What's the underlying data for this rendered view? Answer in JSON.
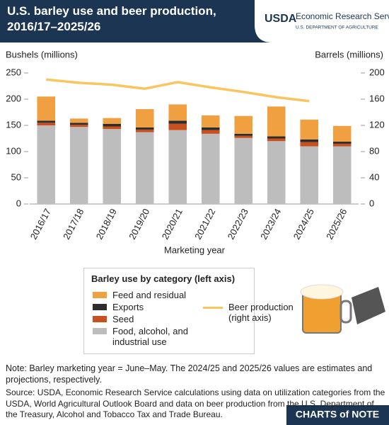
{
  "chart_data": {
    "type": "bar",
    "title": "U.S. barley use and beer production, 2016/17–2025/26",
    "logo": "USDA",
    "agency": "Economic Research Service",
    "department": "U.S. DEPARTMENT OF AGRICULTURE",
    "y_label": "Bushels (millions)",
    "y2_label": "Barrels (millions)",
    "x_label": "Marketing year",
    "legend_title": "Barley use by category (left axis)",
    "categories": [
      "2016/17",
      "2017/18",
      "2018/19",
      "2019/20",
      "2020/21",
      "2021/22",
      "2022/23",
      "2023/24",
      "2024/25",
      "2025/26"
    ],
    "series": [
      {
        "name": "Food, alcohol, and industrial use",
        "color": "#bdbdbd",
        "values": [
          150,
          147,
          143,
          137,
          141,
          134,
          126,
          120,
          110,
          110
        ]
      },
      {
        "name": "Seed",
        "color": "#c8501e",
        "values": [
          5,
          4,
          5,
          5,
          12,
          7,
          4,
          5,
          8,
          5
        ]
      },
      {
        "name": "Exports",
        "color": "#2d2d2d",
        "values": [
          4,
          4,
          5,
          4,
          6,
          5,
          4,
          4,
          5,
          4
        ]
      },
      {
        "name": "Feed and residual",
        "color": "#f0a040",
        "values": [
          46,
          8,
          11,
          35,
          31,
          23,
          34,
          57,
          38,
          30
        ]
      },
      {
        "name": "Beer production (right axis)",
        "type": "line",
        "axis": "y2",
        "color": "#f9c55e",
        "values": [
          190,
          185,
          182,
          176,
          186,
          178,
          171,
          163,
          157,
          null
        ]
      }
    ],
    "ylim": [
      0,
      250
    ],
    "yticks": [
      0,
      50,
      100,
      150,
      200,
      250
    ],
    "y2lim": [
      0,
      200
    ],
    "y2ticks": [
      0,
      40,
      80,
      120,
      160,
      200
    ],
    "note": "Note: Barley marketing year = June–May. The 2024/25 and 2025/26 values are estimates and projections, respectively.",
    "source": "Source: USDA, Economic Research Service calculations using data on utilization categories from the USDA, World Agricultural Outlook Board and data on beer production from the U.S. Department of the Treasury, Alcohol and Tobacco Tax and Trade Bureau.",
    "brand": "CHARTS of NOTE"
  }
}
